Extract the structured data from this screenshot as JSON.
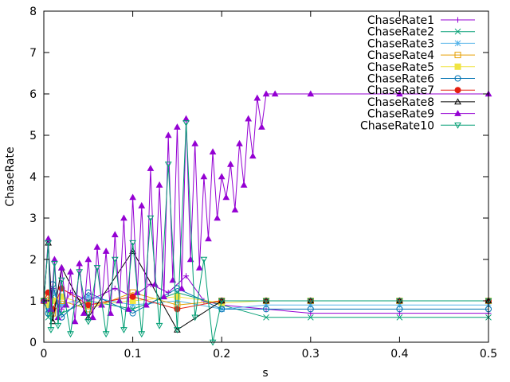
{
  "chart_data": {
    "type": "line",
    "title": "",
    "xlabel": "s",
    "ylabel": "ChaseRate",
    "xlim": [
      0,
      0.5
    ],
    "ylim": [
      0,
      8
    ],
    "xticks": [
      0,
      0.1,
      0.2,
      0.3,
      0.4,
      0.5
    ],
    "xtick_labels": [
      "0",
      "0.1",
      "0.2",
      "0.3",
      "0.4",
      "0.5"
    ],
    "yticks": [
      0,
      1,
      2,
      3,
      4,
      5,
      6,
      7,
      8
    ],
    "ytick_labels": [
      "0",
      "1",
      "2",
      "3",
      "4",
      "5",
      "6",
      "7",
      "8"
    ],
    "grid": false,
    "legend_position": "top-right",
    "series": [
      {
        "name": "ChaseRate1",
        "color": "#9400d3",
        "marker": "plus",
        "x": [
          0,
          0.005,
          0.01,
          0.02,
          0.03,
          0.05,
          0.08,
          0.1,
          0.12,
          0.14,
          0.16,
          0.18,
          0.2,
          0.25,
          0.3,
          0.4,
          0.5
        ],
        "y": [
          1,
          1.0,
          1.3,
          0.8,
          1.2,
          1.0,
          1.3,
          1.1,
          1.4,
          1.2,
          1.6,
          1.0,
          0.9,
          0.8,
          0.7,
          0.7,
          0.7
        ]
      },
      {
        "name": "ChaseRate2",
        "color": "#009e73",
        "marker": "x",
        "x": [
          0,
          0.005,
          0.01,
          0.02,
          0.05,
          0.1,
          0.15,
          0.2,
          0.25,
          0.3,
          0.4,
          0.5
        ],
        "y": [
          1,
          0.6,
          1.1,
          0.7,
          1.0,
          0.8,
          1.2,
          0.9,
          0.6,
          0.6,
          0.6,
          0.6
        ]
      },
      {
        "name": "ChaseRate3",
        "color": "#56b4e9",
        "marker": "star",
        "x": [
          0,
          0.005,
          0.01,
          0.02,
          0.05,
          0.1,
          0.15,
          0.2,
          0.25,
          0.3,
          0.4,
          0.5
        ],
        "y": [
          1,
          0.8,
          1.2,
          0.9,
          1.1,
          0.9,
          1.0,
          0.8,
          0.9,
          0.9,
          0.9,
          0.9
        ]
      },
      {
        "name": "ChaseRate4",
        "color": "#e69f00",
        "marker": "square",
        "x": [
          0,
          0.005,
          0.01,
          0.02,
          0.05,
          0.1,
          0.15,
          0.2,
          0.25,
          0.3,
          0.4,
          0.5
        ],
        "y": [
          1,
          1.1,
          0.7,
          1.0,
          0.8,
          1.2,
          0.9,
          1.0,
          1.0,
          1.0,
          1.0,
          1.0
        ]
      },
      {
        "name": "ChaseRate5",
        "color": "#f0e442",
        "marker": "filled-square",
        "x": [
          0,
          0.005,
          0.01,
          0.02,
          0.05,
          0.1,
          0.15,
          0.2,
          0.25,
          0.3,
          0.4,
          0.5
        ],
        "y": [
          1,
          0.9,
          1.0,
          1.1,
          0.9,
          1.0,
          1.1,
          0.95,
          1.0,
          1.0,
          1.0,
          1.0
        ]
      },
      {
        "name": "ChaseRate6",
        "color": "#0072b2",
        "marker": "circle",
        "x": [
          0,
          0.005,
          0.01,
          0.02,
          0.05,
          0.1,
          0.15,
          0.2,
          0.25,
          0.3,
          0.4,
          0.5
        ],
        "y": [
          1,
          0.7,
          1.4,
          0.6,
          1.2,
          0.7,
          1.3,
          0.8,
          0.8,
          0.8,
          0.8,
          0.8
        ]
      },
      {
        "name": "ChaseRate7",
        "color": "#e51e10",
        "marker": "filled-circle",
        "x": [
          0,
          0.005,
          0.01,
          0.02,
          0.05,
          0.1,
          0.15,
          0.2,
          0.25,
          0.3,
          0.4,
          0.5
        ],
        "y": [
          1,
          1.2,
          0.8,
          1.3,
          0.9,
          1.1,
          0.8,
          1.0,
          1.0,
          1.0,
          1.0,
          1.0
        ]
      },
      {
        "name": "ChaseRate8",
        "color": "#000000",
        "marker": "triangle",
        "x": [
          0,
          0.005,
          0.01,
          0.02,
          0.05,
          0.1,
          0.15,
          0.2,
          0.25,
          0.3,
          0.4,
          0.5
        ],
        "y": [
          1,
          2.4,
          0.5,
          1.8,
          0.6,
          2.2,
          0.3,
          1.0,
          1.0,
          1.0,
          1.0,
          1.0
        ]
      },
      {
        "name": "ChaseRate9",
        "color": "#9400d3",
        "marker": "filled-triangle",
        "x": [
          0,
          0.005,
          0.008,
          0.012,
          0.016,
          0.02,
          0.025,
          0.03,
          0.035,
          0.04,
          0.045,
          0.05,
          0.055,
          0.06,
          0.065,
          0.07,
          0.075,
          0.08,
          0.085,
          0.09,
          0.095,
          0.1,
          0.105,
          0.11,
          0.115,
          0.12,
          0.125,
          0.13,
          0.135,
          0.14,
          0.145,
          0.15,
          0.155,
          0.16,
          0.165,
          0.17,
          0.175,
          0.18,
          0.185,
          0.19,
          0.195,
          0.2,
          0.205,
          0.21,
          0.215,
          0.22,
          0.225,
          0.23,
          0.235,
          0.24,
          0.245,
          0.25,
          0.26,
          0.3,
          0.4,
          0.5
        ],
        "y": [
          1,
          2.5,
          0.8,
          2.0,
          0.6,
          1.8,
          0.9,
          1.7,
          0.5,
          1.9,
          0.7,
          2.0,
          0.6,
          2.3,
          0.9,
          2.2,
          0.7,
          2.6,
          1.0,
          3.0,
          0.8,
          3.5,
          1.2,
          3.3,
          0.9,
          4.2,
          1.4,
          3.8,
          1.1,
          5.0,
          1.5,
          5.2,
          1.3,
          5.4,
          2.0,
          4.8,
          1.8,
          4.0,
          2.5,
          4.6,
          3.0,
          4.0,
          3.5,
          4.3,
          3.2,
          4.8,
          3.8,
          5.4,
          4.5,
          5.9,
          5.2,
          6.0,
          6.0,
          6.0,
          6.0,
          6.0
        ]
      },
      {
        "name": "ChaseRate10",
        "color": "#009e73",
        "marker": "inverted-triangle",
        "x": [
          0,
          0.005,
          0.008,
          0.012,
          0.016,
          0.02,
          0.03,
          0.04,
          0.05,
          0.06,
          0.07,
          0.08,
          0.09,
          0.1,
          0.11,
          0.12,
          0.13,
          0.14,
          0.15,
          0.16,
          0.17,
          0.18,
          0.19,
          0.2,
          0.25,
          0.3,
          0.4,
          0.5
        ],
        "y": [
          1,
          2.4,
          0.3,
          1.9,
          0.4,
          1.5,
          0.2,
          1.7,
          0.5,
          1.8,
          0.2,
          2.0,
          0.3,
          2.4,
          0.2,
          3.0,
          0.4,
          4.3,
          0.3,
          5.3,
          0.6,
          2.0,
          0.0,
          1.0,
          1.0,
          1.0,
          1.0,
          1.0
        ]
      }
    ]
  }
}
